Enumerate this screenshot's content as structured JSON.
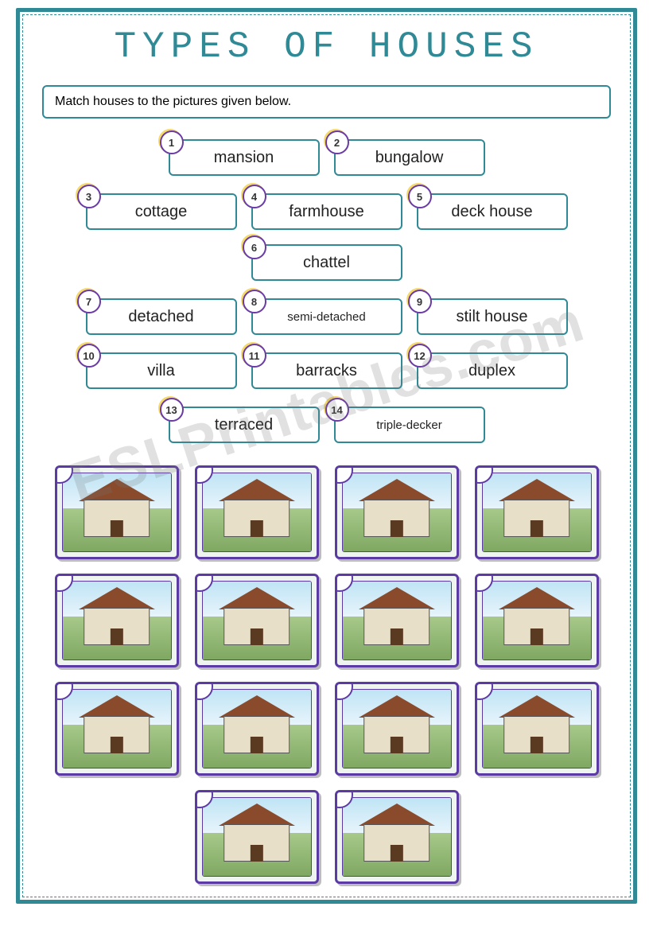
{
  "title": "TYPES OF HOUSES",
  "instruction": "Match houses to the pictures given below.",
  "watermark": "ESLPrintables.com",
  "colors": {
    "border": "#2f8a96",
    "title": "#2f8a96",
    "badge_border": "#6a3aa5",
    "badge_shadow": "#f5d96a",
    "pic_border": "#5b3aa3"
  },
  "words": [
    {
      "n": "1",
      "label": "mansion"
    },
    {
      "n": "2",
      "label": "bungalow"
    },
    {
      "n": "3",
      "label": "cottage"
    },
    {
      "n": "4",
      "label": "farmhouse"
    },
    {
      "n": "5",
      "label": "deck house"
    },
    {
      "n": "6",
      "label": "chattel"
    },
    {
      "n": "7",
      "label": "detached"
    },
    {
      "n": "8",
      "label": "semi-detached"
    },
    {
      "n": "9",
      "label": "stilt house"
    },
    {
      "n": "10",
      "label": "villa"
    },
    {
      "n": "11",
      "label": "barracks"
    },
    {
      "n": "12",
      "label": "duplex"
    },
    {
      "n": "13",
      "label": "terraced"
    },
    {
      "n": "14",
      "label": "triple-decker"
    }
  ],
  "word_rows": [
    [
      0,
      1
    ],
    [
      2,
      3,
      4,
      5
    ],
    [
      6,
      7,
      8
    ],
    [
      9,
      10,
      11
    ],
    [
      12,
      13
    ]
  ],
  "small_text_indices": [
    7,
    13
  ],
  "pictures": {
    "count": 14,
    "rows": [
      4,
      4,
      4,
      2
    ]
  }
}
